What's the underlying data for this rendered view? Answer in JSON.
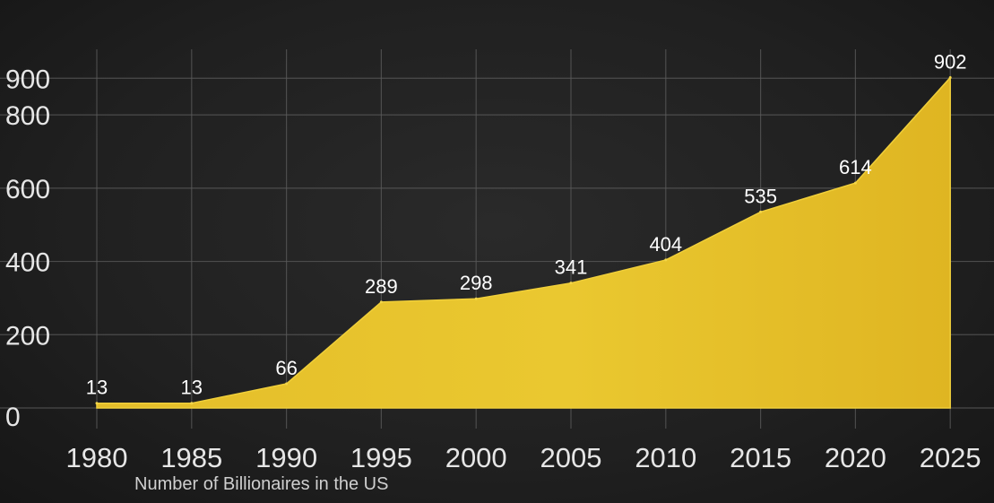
{
  "chart_data": {
    "type": "area",
    "x": [
      1980,
      1985,
      1990,
      1995,
      2000,
      2005,
      2010,
      2015,
      2020,
      2025
    ],
    "series": [
      {
        "values": [
          13,
          13,
          66,
          289,
          298,
          341,
          404,
          535,
          614,
          902
        ]
      }
    ],
    "x_tick_labels": [
      "1980",
      "1985",
      "1990",
      "1995",
      "2000",
      "2005",
      "2010",
      "2015",
      "2020",
      "2025"
    ],
    "y_tick_labels": [
      "0",
      "200",
      "400",
      "600",
      "800",
      "900"
    ],
    "xlabel": "Number of Billionaires in the US",
    "ylabel": "",
    "title": "",
    "grid": true,
    "colors": {
      "fill": "#e8c22a",
      "background": "#1e1e1e",
      "grid": "#5a5a5a"
    }
  }
}
